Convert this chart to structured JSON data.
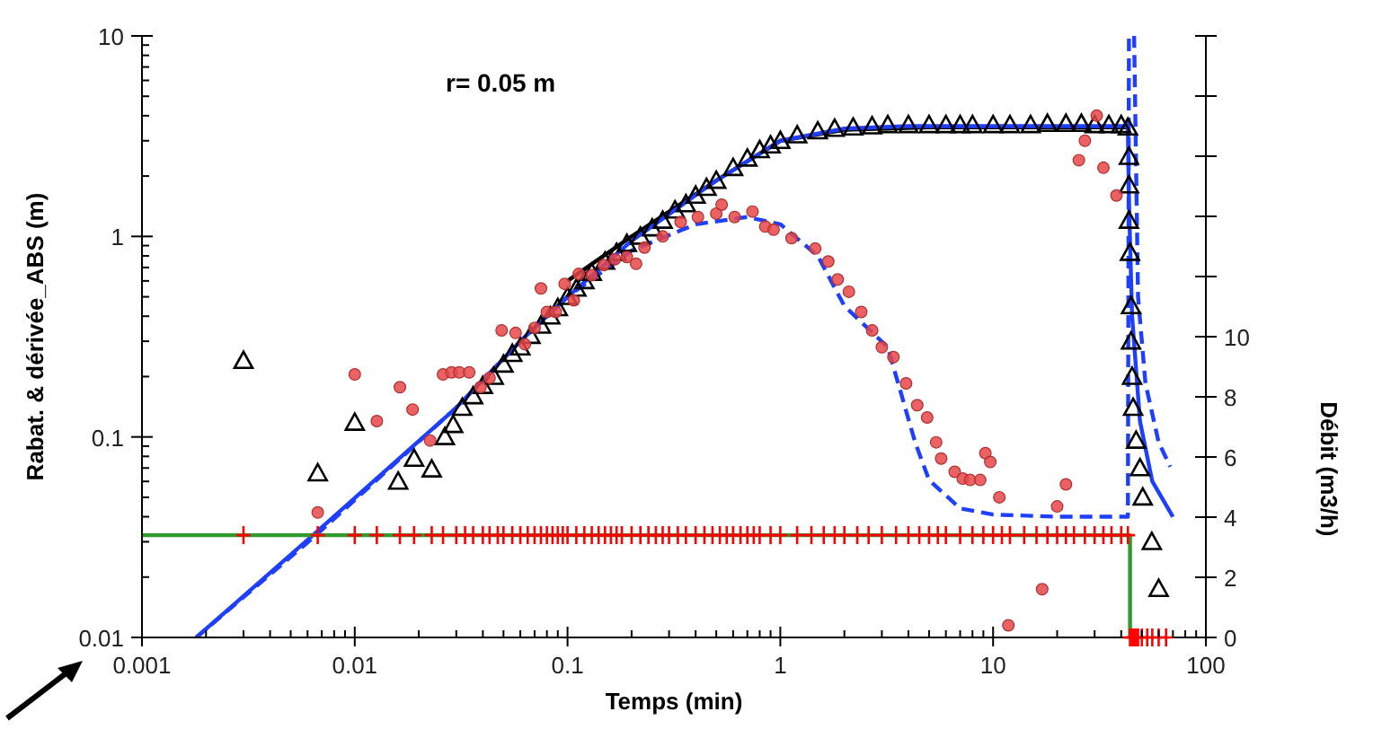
{
  "chart_data": {
    "type": "line",
    "title": "r= 0.05 m",
    "xlabel": "Temps (min)",
    "ylabel": "Rabat. & dérivée_ABS (m)",
    "y2label": "Débit (m3/h)",
    "log": "xy",
    "xlim": [
      0.001,
      100
    ],
    "xticks": [
      0.001,
      {
        "value": 0.002,
        "label": null
      },
      {
        "value": 0.003,
        "label": null
      },
      {
        "value": 0.004,
        "label": null
      },
      {
        "value": 0.005,
        "label": null
      },
      {
        "value": 0.006,
        "label": null
      },
      {
        "value": 0.007,
        "label": null
      },
      {
        "value": 0.008,
        "label": null
      },
      {
        "value": 0.009,
        "label": null
      },
      0.01,
      {
        "value": 0.02,
        "label": null
      },
      {
        "value": 0.03,
        "label": null
      },
      {
        "value": 0.04,
        "label": null
      },
      {
        "value": 0.05,
        "label": null
      },
      {
        "value": 0.06,
        "label": null
      },
      {
        "value": 0.07,
        "label": null
      },
      {
        "value": 0.08,
        "label": null
      },
      {
        "value": 0.09,
        "label": null
      },
      0.1,
      {
        "value": 0.2,
        "label": null
      },
      {
        "value": 0.3,
        "label": null
      },
      {
        "value": 0.4,
        "label": null
      },
      {
        "value": 0.5,
        "label": null
      },
      {
        "value": 0.6,
        "label": null
      },
      {
        "value": 0.7,
        "label": null
      },
      {
        "value": 0.8,
        "label": null
      },
      {
        "value": 0.9,
        "label": null
      },
      1,
      {
        "value": 2,
        "label": null
      },
      {
        "value": 3,
        "label": null
      },
      {
        "value": 4,
        "label": null
      },
      {
        "value": 5,
        "label": null
      },
      {
        "value": 6,
        "label": null
      },
      {
        "value": 7,
        "label": null
      },
      {
        "value": 8,
        "label": null
      },
      {
        "value": 9,
        "label": null
      },
      10,
      {
        "value": 20,
        "label": null
      },
      {
        "value": 30,
        "label": null
      },
      {
        "value": 40,
        "label": null
      },
      {
        "value": 50,
        "label": null
      },
      {
        "value": 60,
        "label": null
      },
      {
        "value": 70,
        "label": null
      },
      {
        "value": 80,
        "label": null
      },
      {
        "value": 90,
        "label": null
      },
      100
    ],
    "ylim": [
      0.01,
      10
    ],
    "yticks": [
      0.01,
      {
        "value": 0.02,
        "label": null
      },
      {
        "value": 0.03,
        "label": null
      },
      {
        "value": 0.04,
        "label": null
      },
      {
        "value": 0.05,
        "label": null
      },
      {
        "value": 0.06,
        "label": null
      },
      {
        "value": 0.07,
        "label": null
      },
      {
        "value": 0.08,
        "label": null
      },
      {
        "value": 0.09,
        "label": null
      },
      0.1,
      {
        "value": 0.2,
        "label": null
      },
      {
        "value": 0.3,
        "label": null
      },
      {
        "value": 0.4,
        "label": null
      },
      {
        "value": 0.5,
        "label": null
      },
      {
        "value": 0.6,
        "label": null
      },
      {
        "value": 0.7,
        "label": null
      },
      {
        "value": 0.8,
        "label": null
      },
      {
        "value": 0.9,
        "label": null
      },
      1,
      {
        "value": 2,
        "label": null
      },
      {
        "value": 3,
        "label": null
      },
      {
        "value": 4,
        "label": null
      },
      {
        "value": 5,
        "label": null
      },
      {
        "value": 6,
        "label": null
      },
      {
        "value": 7,
        "label": null
      },
      {
        "value": 8,
        "label": null
      },
      {
        "value": 9,
        "label": null
      },
      10
    ],
    "y2lim": [
      0,
      20
    ],
    "y2ticks": [
      0,
      2,
      4,
      6,
      8,
      10,
      {
        "value": 12,
        "label": null
      },
      {
        "value": 14,
        "label": null
      },
      {
        "value": 16,
        "label": null
      },
      {
        "value": 18,
        "label": null
      },
      {
        "value": 20,
        "label": null
      }
    ],
    "series": [
      {
        "type": "line",
        "color": "#000000",
        "line_style": "solid",
        "marker": "none",
        "x": [
          0.1,
          0.2,
          0.5,
          1,
          2,
          5,
          10,
          20,
          43
        ],
        "values": [
          0.6,
          1.0,
          1.9,
          3.0,
          3.4,
          3.5,
          3.5,
          3.5,
          3.5
        ]
      },
      {
        "color": "#1f3fff",
        "line_style": "solid",
        "marker": "none",
        "x": [
          0.0018,
          0.0065,
          0.03,
          0.06,
          0.1,
          0.2,
          0.5,
          1,
          2,
          4,
          10,
          20,
          43,
          43.5,
          45,
          49,
          56,
          70
        ],
        "values": [
          0.01,
          0.033,
          0.14,
          0.3,
          0.5,
          0.95,
          1.9,
          3.0,
          3.45,
          3.55,
          3.55,
          3.55,
          3.55,
          1.5,
          0.4,
          0.12,
          0.06,
          0.04
        ]
      },
      {
        "color": "#1f3fff",
        "line_style": "dashed",
        "marker": "none",
        "x": [
          0.0018,
          0.0065,
          0.03,
          0.06,
          0.1,
          0.2,
          0.4,
          0.7,
          1,
          1.5,
          2,
          3.2,
          4.3,
          5,
          7,
          10,
          20,
          43,
          43.5,
          46,
          48,
          52,
          60,
          68
        ],
        "values": [
          0.01,
          0.032,
          0.14,
          0.3,
          0.5,
          0.85,
          1.15,
          1.25,
          1.15,
          0.8,
          0.45,
          0.28,
          0.094,
          0.061,
          0.044,
          0.041,
          0.04,
          0.04,
          10,
          10,
          0.5,
          0.185,
          0.094,
          0.071
        ]
      },
      {
        "type": "scatter",
        "color": "#000000",
        "marker": "triangle",
        "x": [
          0.003,
          0.0067,
          0.01,
          0.016,
          0.019,
          0.023,
          0.0265,
          0.029,
          0.032,
          0.036,
          0.04,
          0.045,
          0.05,
          0.055,
          0.06,
          0.067,
          0.075,
          0.083,
          0.09,
          0.1,
          0.11,
          0.12,
          0.13,
          0.15,
          0.17,
          0.19,
          0.22,
          0.25,
          0.28,
          0.32,
          0.36,
          0.4,
          0.45,
          0.5,
          0.6,
          0.7,
          0.8,
          0.9,
          1,
          1.2,
          1.5,
          1.8,
          2.2,
          2.7,
          3.2,
          4,
          5,
          6,
          7,
          8,
          10,
          12,
          15,
          18,
          22,
          26,
          30,
          35,
          40,
          43,
          43.5,
          43.5,
          43.5,
          44,
          44.5,
          44.5,
          45,
          45.5,
          47,
          49,
          50.5,
          55.7,
          60
        ],
        "values": [
          0.24,
          0.066,
          0.118,
          0.06,
          0.078,
          0.069,
          0.1,
          0.115,
          0.14,
          0.16,
          0.18,
          0.2,
          0.23,
          0.26,
          0.28,
          0.32,
          0.36,
          0.4,
          0.44,
          0.5,
          0.55,
          0.6,
          0.66,
          0.75,
          0.83,
          0.92,
          1.0,
          1.1,
          1.2,
          1.35,
          1.45,
          1.6,
          1.75,
          1.9,
          2.2,
          2.45,
          2.7,
          2.85,
          3.0,
          3.2,
          3.35,
          3.45,
          3.5,
          3.55,
          3.6,
          3.6,
          3.6,
          3.6,
          3.6,
          3.6,
          3.6,
          3.6,
          3.6,
          3.65,
          3.65,
          3.65,
          3.6,
          3.6,
          3.6,
          3.5,
          2.5,
          1.8,
          1.2,
          0.83,
          0.45,
          0.3,
          0.2,
          0.14,
          0.096,
          0.07,
          0.05,
          0.03,
          0.0175
        ]
      },
      {
        "type": "scatter",
        "color": "#e8474a",
        "marker": "circle",
        "x": [
          0.0067,
          0.01,
          0.0127,
          0.0163,
          0.0187,
          0.0226,
          0.026,
          0.0285,
          0.031,
          0.0345,
          0.039,
          0.043,
          0.049,
          0.057,
          0.063,
          0.07,
          0.075,
          0.08,
          0.088,
          0.097,
          0.107,
          0.113,
          0.13,
          0.148,
          0.167,
          0.19,
          0.21,
          0.23,
          0.28,
          0.34,
          0.41,
          0.5,
          0.53,
          0.61,
          0.74,
          0.85,
          0.93,
          1.13,
          1.46,
          1.68,
          1.86,
          2.1,
          2.4,
          2.7,
          3.0,
          3.4,
          3.9,
          4.4,
          4.9,
          5.4,
          5.7,
          6.6,
          7.2,
          7.8,
          8.7,
          9.2,
          9.7,
          10.7,
          11.8,
          17,
          20,
          22,
          25.3,
          27,
          30.7,
          33,
          38
        ],
        "values": [
          0.042,
          0.205,
          0.12,
          0.177,
          0.137,
          0.096,
          0.205,
          0.21,
          0.21,
          0.21,
          0.177,
          0.197,
          0.34,
          0.33,
          0.29,
          0.35,
          0.55,
          0.42,
          0.42,
          0.58,
          0.48,
          0.65,
          0.64,
          0.72,
          0.77,
          0.79,
          0.73,
          0.88,
          1.0,
          1.18,
          1.25,
          1.3,
          1.44,
          1.25,
          1.33,
          1.12,
          1.08,
          0.98,
          0.87,
          0.75,
          0.61,
          0.53,
          0.42,
          0.34,
          0.28,
          0.25,
          0.185,
          0.144,
          0.125,
          0.094,
          0.078,
          0.067,
          0.062,
          0.061,
          0.061,
          0.083,
          0.075,
          0.05,
          0.0115,
          0.0174,
          0.045,
          0.058,
          2.4,
          3.0,
          4.0,
          2.2,
          1.6
        ]
      },
      {
        "axis": "y2",
        "color": "#2e9b2e",
        "line_style": "solid",
        "marker": "none",
        "x": [
          0.001,
          44,
          44
        ],
        "values": [
          3.4,
          3.4,
          0
        ]
      },
      {
        "type": "scatter",
        "axis": "y2",
        "color": "#ff0000",
        "marker": "cross",
        "x": [
          0.003,
          0.0067,
          0.01,
          0.0127,
          0.0163,
          0.019,
          0.023,
          0.026,
          0.03,
          0.033,
          0.036,
          0.04,
          0.043,
          0.047,
          0.05,
          0.055,
          0.06,
          0.065,
          0.07,
          0.075,
          0.08,
          0.085,
          0.09,
          0.095,
          0.1,
          0.11,
          0.12,
          0.13,
          0.14,
          0.15,
          0.16,
          0.17,
          0.18,
          0.2,
          0.22,
          0.24,
          0.26,
          0.28,
          0.3,
          0.33,
          0.36,
          0.4,
          0.44,
          0.48,
          0.52,
          0.56,
          0.6,
          0.65,
          0.7,
          0.75,
          0.8,
          0.9,
          1.0,
          1.2,
          1.4,
          1.6,
          1.8,
          2.0,
          2.3,
          2.6,
          3,
          3.5,
          4,
          4.5,
          5,
          5.5,
          6,
          7,
          8,
          9,
          10,
          11,
          12,
          14,
          16,
          18,
          20,
          22,
          24,
          27,
          30,
          33,
          36,
          40,
          43,
          44,
          45,
          46,
          47,
          48,
          50,
          53,
          56,
          60,
          65
        ],
        "values": [
          3.4,
          3.4,
          3.4,
          3.4,
          3.4,
          3.4,
          3.4,
          3.4,
          3.4,
          3.4,
          3.4,
          3.4,
          3.4,
          3.4,
          3.4,
          3.4,
          3.4,
          3.4,
          3.4,
          3.4,
          3.4,
          3.4,
          3.4,
          3.4,
          3.4,
          3.4,
          3.4,
          3.4,
          3.4,
          3.4,
          3.4,
          3.4,
          3.4,
          3.4,
          3.4,
          3.4,
          3.4,
          3.4,
          3.4,
          3.4,
          3.4,
          3.4,
          3.4,
          3.4,
          3.4,
          3.4,
          3.4,
          3.4,
          3.4,
          3.4,
          3.4,
          3.4,
          3.4,
          3.4,
          3.4,
          3.4,
          3.4,
          3.4,
          3.4,
          3.4,
          3.4,
          3.4,
          3.4,
          3.4,
          3.4,
          3.4,
          3.4,
          3.4,
          3.4,
          3.4,
          3.4,
          3.4,
          3.4,
          3.4,
          3.4,
          3.4,
          3.4,
          3.4,
          3.4,
          3.4,
          3.4,
          3.4,
          3.4,
          3.4,
          3.4,
          0,
          0,
          0,
          0,
          0,
          0,
          0,
          0,
          0,
          0
        ]
      }
    ]
  }
}
